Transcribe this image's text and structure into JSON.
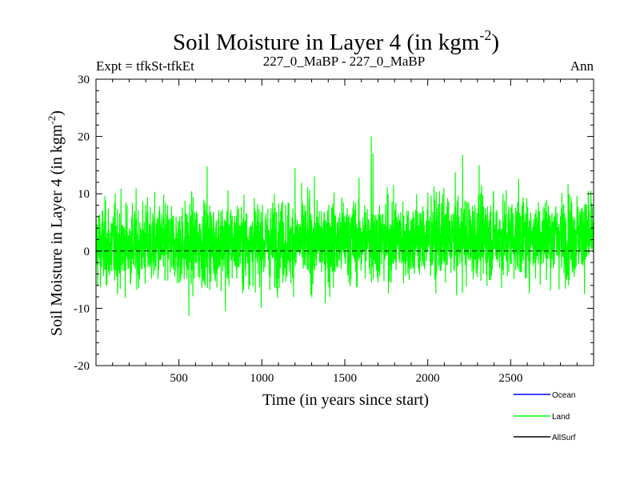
{
  "chart_data": {
    "type": "line",
    "title": "Soil Moisture in Layer 4 (in kgm",
    "title_sup": "-2",
    "title_close": ")",
    "subtitle_left": "Expt = tfkSt-tfkEt",
    "subtitle_center": "227_0_MaBP - 227_0_MaBP",
    "subtitle_right": "Ann",
    "xlabel": "Time (in years since start)",
    "ylabel": "Soil Moisture in Layer 4 (in kgm",
    "ylabel_sup": "-2",
    "ylabel_close": ")",
    "xlim": [
      0,
      3000
    ],
    "ylim": [
      -20,
      30
    ],
    "x_ticks": [
      500,
      1000,
      1500,
      2000,
      2500
    ],
    "x_tick_labels": [
      "500",
      "1000",
      "1500",
      "2000",
      "2500"
    ],
    "y_ticks": [
      -20,
      -10,
      0,
      10,
      20,
      30
    ],
    "y_tick_labels": [
      "-20",
      "-10",
      "0",
      "10",
      "20",
      "30"
    ],
    "zero_line": 0,
    "legend_placement": "bottom-right",
    "series": [
      {
        "name": "Ocean",
        "color": "#0000ff",
        "values": []
      },
      {
        "name": "Land",
        "color": "#00ff00",
        "n_years": 3000,
        "mean": 1.8,
        "std": 3.6,
        "min": -11.3,
        "max": 20.0,
        "peaks": [
          [
            560,
            -11.3
          ],
          [
            670,
            14.8
          ],
          [
            780,
            -10.5
          ],
          [
            1200,
            14.5
          ],
          [
            1660,
            20.0
          ],
          [
            1670,
            17.0
          ],
          [
            2210,
            16.8
          ],
          [
            2310,
            15.0
          ],
          [
            1410,
            -8.0
          ]
        ]
      },
      {
        "name": "AllSurf",
        "color": "#000000",
        "values": []
      }
    ]
  }
}
